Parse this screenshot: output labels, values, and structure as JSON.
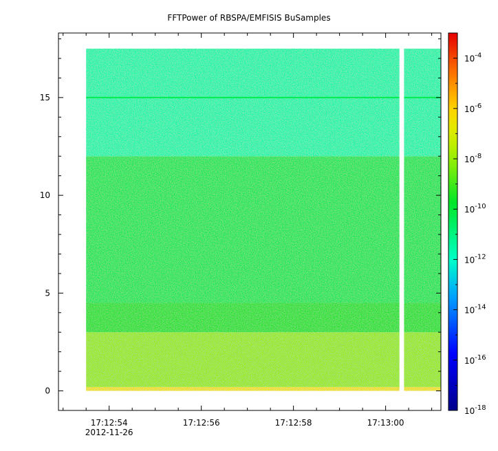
{
  "chart_data": {
    "type": "heatmap",
    "title": "FFTPower of RBSPA/EMFISIS  BuSamples",
    "xlabel": "",
    "ylabel": "",
    "x_range": [
      "17:12:52.9",
      "17:13:01.2"
    ],
    "ylim": [
      -1,
      18.3
    ],
    "data_y_range": [
      0,
      17.5
    ],
    "data_x_start": "17:12:53.5",
    "data_gap": [
      "17:13:00.3",
      "17:13:00.4"
    ],
    "y_ticks": [
      0,
      5,
      10,
      15
    ],
    "x_ticks": [
      {
        "value": "17:12:54",
        "label": "17:12:54",
        "sublabel": "2012-11-26"
      },
      {
        "value": "17:12:56",
        "label": "17:12:56",
        "sublabel": ""
      },
      {
        "value": "17:12:58",
        "label": "17:12:58",
        "sublabel": ""
      },
      {
        "value": "17:13:00",
        "label": "17:13:00",
        "sublabel": ""
      }
    ],
    "colorbar": {
      "scale": "log",
      "range": [
        1e-18,
        0.001
      ],
      "tick_values": [
        1e-18,
        1e-16,
        1e-14,
        1e-12,
        1e-10,
        1e-08,
        1e-06,
        0.0001
      ],
      "tick_labels": [
        {
          "base": "10",
          "exp": "-18"
        },
        {
          "base": "10",
          "exp": "-16"
        },
        {
          "base": "10",
          "exp": "-14"
        },
        {
          "base": "10",
          "exp": "-12"
        },
        {
          "base": "10",
          "exp": "-10"
        },
        {
          "base": "10",
          "exp": "-8"
        },
        {
          "base": "10",
          "exp": "-6"
        },
        {
          "base": "10",
          "exp": "-4"
        }
      ]
    },
    "power_profile": [
      {
        "y": [
          0,
          0.2
        ],
        "log_power": -6.5
      },
      {
        "y": [
          0.2,
          3
        ],
        "log_power": -8
      },
      {
        "y": [
          3,
          4.5
        ],
        "log_power": -9.5
      },
      {
        "y": [
          4.5,
          12
        ],
        "log_power": -10.3
      },
      {
        "y": [
          12,
          17.5
        ],
        "log_power": -11.6
      }
    ],
    "features": [
      {
        "type": "horizontal-line",
        "y": 15,
        "log_power": -10.3
      }
    ]
  }
}
